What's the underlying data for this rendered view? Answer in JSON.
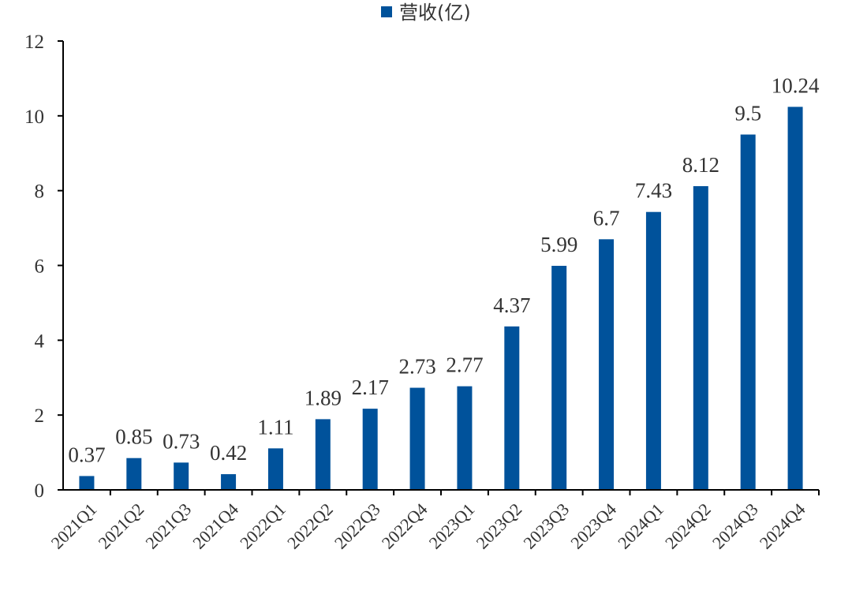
{
  "chart_data": {
    "type": "bar",
    "categories": [
      "2021Q1",
      "2021Q2",
      "2021Q3",
      "2021Q4",
      "2022Q1",
      "2022Q2",
      "2022Q3",
      "2022Q4",
      "2023Q1",
      "2023Q2",
      "2023Q3",
      "2023Q4",
      "2024Q1",
      "2024Q2",
      "2024Q3",
      "2024Q4"
    ],
    "series": [
      {
        "name": "营收(亿)",
        "values": [
          0.37,
          0.85,
          0.73,
          0.42,
          1.11,
          1.89,
          2.17,
          2.73,
          2.77,
          4.37,
          5.99,
          6.7,
          7.43,
          8.12,
          9.5,
          10.24
        ],
        "labels": [
          "0.37",
          "0.85",
          "0.73",
          "0.42",
          "1.11",
          "1.89",
          "2.17",
          "2.73",
          "2.77",
          "4.37",
          "5.99",
          "6.7",
          "7.43",
          "8.12",
          "9.5",
          "10.24"
        ],
        "color": "#00529B"
      }
    ],
    "ylim": [
      0,
      12
    ],
    "yticks": [
      0,
      2,
      4,
      6,
      8,
      10,
      12
    ],
    "legend_position": "top-center",
    "grid": false
  }
}
